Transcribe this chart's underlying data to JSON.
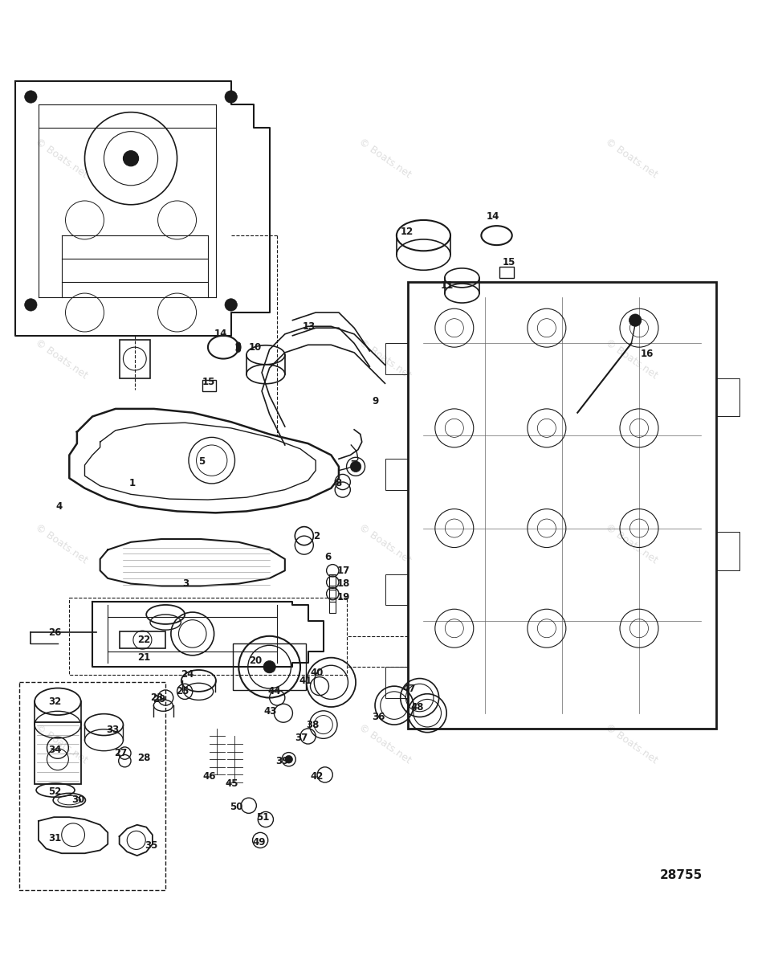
{
  "background_color": "#ffffff",
  "watermark_text": "© Boats.net",
  "watermark_color": "#d8d8d8",
  "diagram_number": "28755",
  "line_color": "#1a1a1a",
  "label_fontsize": 9,
  "title_fontsize": 11
}
